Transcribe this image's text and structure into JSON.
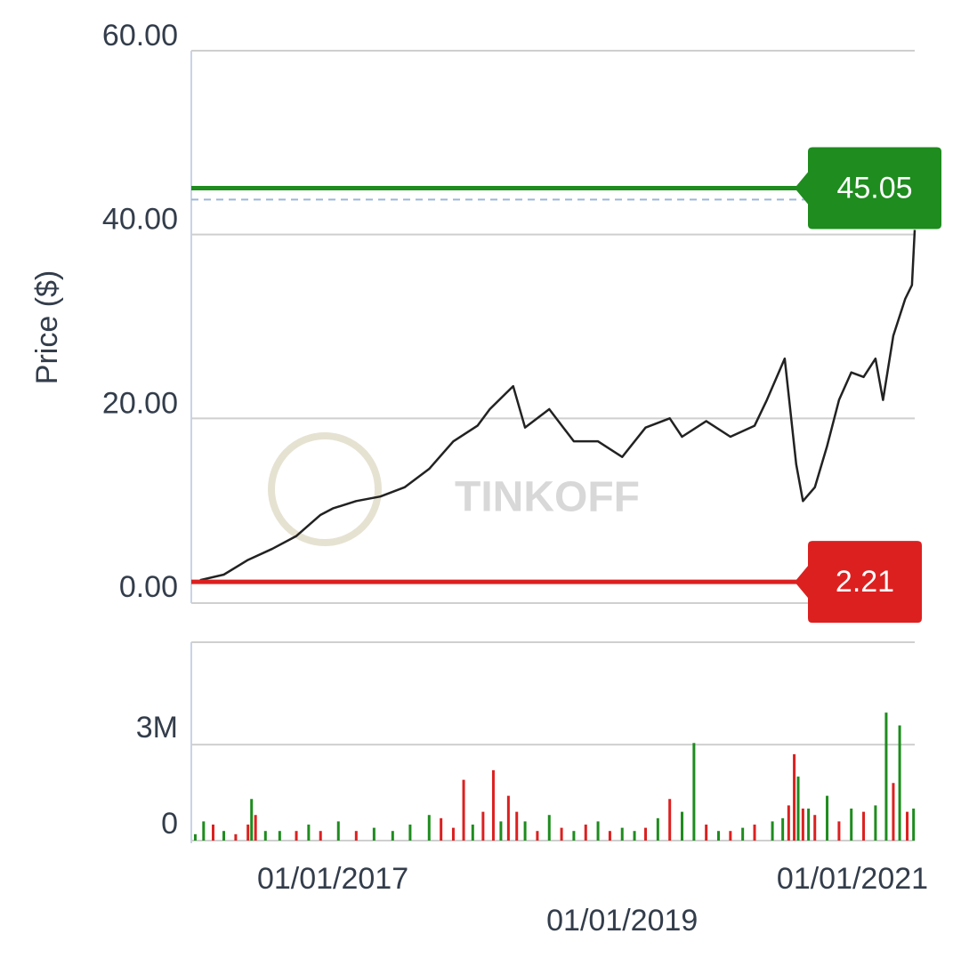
{
  "chart_data": [
    {
      "type": "line",
      "ylabel": "Price ($)",
      "watermark": "TINKOFF",
      "xlim": [
        "01/10/2016",
        "01/08/2021"
      ],
      "xticks": [
        "01/01/2017",
        "01/01/2019",
        "01/01/2021"
      ],
      "ylim": [
        0,
        60
      ],
      "yticks": [
        {
          "value": 0,
          "label": "0.00"
        },
        {
          "value": 20,
          "label": "20.00"
        },
        {
          "value": 40,
          "label": "40.00"
        },
        {
          "value": 60,
          "label": "60.00"
        }
      ],
      "grid": true,
      "x": [
        "02/01/2016",
        "04/01/2016",
        "06/01/2016",
        "08/01/2016",
        "10/01/2016",
        "12/01/2016",
        "01/01/2017",
        "03/01/2017",
        "05/01/2017",
        "07/01/2017",
        "09/01/2017",
        "11/01/2017",
        "01/01/2018",
        "02/01/2018",
        "04/01/2018",
        "05/01/2018",
        "07/01/2018",
        "09/01/2018",
        "11/01/2018",
        "01/01/2019",
        "03/01/2019",
        "05/01/2019",
        "06/01/2019",
        "08/01/2019",
        "10/01/2019",
        "12/01/2019",
        "01/01/2020",
        "02/15/2020",
        "03/15/2020",
        "04/01/2020",
        "05/01/2020",
        "06/01/2020",
        "07/01/2020",
        "08/01/2020",
        "09/01/2020",
        "10/01/2020",
        "10/20/2020",
        "11/15/2020",
        "12/15/2020",
        "01/01/2021",
        "01/08/2021"
      ],
      "series": [
        {
          "color": "#222222",
          "values": [
            2.4,
            3.0,
            4.6,
            5.8,
            7.2,
            9.5,
            10.2,
            11,
            11.5,
            12.5,
            14.5,
            17.5,
            19.2,
            21,
            23.5,
            19,
            21,
            17.5,
            17.5,
            15.8,
            19,
            20,
            18,
            19.7,
            18,
            19.2,
            22,
            26.5,
            15,
            11,
            12.5,
            17,
            22,
            25,
            24.5,
            26.5,
            22,
            29,
            33,
            34.5,
            40.5
          ]
        }
      ],
      "reference_lines": [
        {
          "value": 45.05,
          "color": "#1e8c1e"
        },
        {
          "value": 2.21,
          "color": "#dc2020"
        }
      ],
      "dashed_line": 43.8
    },
    {
      "type": "bar",
      "xlim": [
        "01/10/2016",
        "01/08/2021"
      ],
      "ylim": [
        0,
        6200000
      ],
      "yticks": [
        0,
        {
          "value": 3000000,
          "label": "3M"
        }
      ],
      "grid": true,
      "x": [
        "01/20/2016",
        "02/10/2016",
        "03/05/2016",
        "04/01/2016",
        "05/01/2016",
        "06/01/2016",
        "06/10/2016",
        "06/20/2016",
        "07/15/2016",
        "08/20/2016",
        "10/01/2016",
        "11/01/2016",
        "12/01/2016",
        "01/15/2017",
        "03/01/2017",
        "04/15/2017",
        "06/01/2017",
        "07/15/2017",
        "09/01/2017",
        "10/01/2017",
        "11/01/2017",
        "11/27/2017",
        "12/20/2017",
        "01/15/2018",
        "02/10/2018",
        "03/01/2018",
        "03/20/2018",
        "04/10/2018",
        "05/01/2018",
        "06/01/2018",
        "07/01/2018",
        "08/01/2018",
        "09/01/2018",
        "10/01/2018",
        "11/01/2018",
        "12/01/2018",
        "01/01/2019",
        "02/01/2019",
        "03/01/2019",
        "04/01/2019",
        "05/01/2019",
        "06/01/2019",
        "07/01/2019",
        "08/01/2019",
        "09/01/2019",
        "10/01/2019",
        "11/01/2019",
        "12/01/2019",
        "01/15/2020",
        "02/10/2020",
        "02/25/2020",
        "03/10/2020",
        "03/20/2020",
        "04/01/2020",
        "04/15/2020",
        "05/01/2020",
        "06/01/2020",
        "07/01/2020",
        "08/01/2020",
        "09/01/2020",
        "10/01/2020",
        "10/28/2020",
        "11/15/2020",
        "12/01/2020",
        "12/20/2020",
        "01/05/2021"
      ],
      "values": [
        200000,
        600000,
        500000,
        300000,
        200000,
        500000,
        1300000,
        800000,
        300000,
        300000,
        300000,
        500000,
        300000,
        600000,
        300000,
        400000,
        300000,
        500000,
        800000,
        700000,
        400000,
        1900000,
        500000,
        900000,
        2200000,
        600000,
        1400000,
        900000,
        600000,
        300000,
        800000,
        400000,
        300000,
        500000,
        600000,
        300000,
        400000,
        300000,
        400000,
        700000,
        1300000,
        900000,
        3050000,
        500000,
        300000,
        300000,
        400000,
        500000,
        600000,
        700000,
        1100000,
        2700000,
        2000000,
        1000000,
        1000000,
        800000,
        1400000,
        600000,
        1000000,
        900000,
        1100000,
        4000000,
        1800000,
        3600000,
        900000,
        1000000
      ],
      "colors": [
        "#1e8c1e",
        "#1e8c1e",
        "#dc2020",
        "#1e8c1e",
        "#dc2020",
        "#dc2020",
        "#1e8c1e",
        "#dc2020",
        "#1e8c1e",
        "#1e8c1e",
        "#dc2020",
        "#1e8c1e",
        "#dc2020",
        "#1e8c1e",
        "#dc2020",
        "#1e8c1e",
        "#1e8c1e",
        "#1e8c1e",
        "#1e8c1e",
        "#dc2020",
        "#dc2020",
        "#dc2020",
        "#1e8c1e",
        "#dc2020",
        "#dc2020",
        "#1e8c1e",
        "#dc2020",
        "#dc2020",
        "#1e8c1e",
        "#dc2020",
        "#1e8c1e",
        "#dc2020",
        "#1e8c1e",
        "#dc2020",
        "#1e8c1e",
        "#dc2020",
        "#1e8c1e",
        "#1e8c1e",
        "#dc2020",
        "#1e8c1e",
        "#dc2020",
        "#1e8c1e",
        "#1e8c1e",
        "#dc2020",
        "#1e8c1e",
        "#dc2020",
        "#1e8c1e",
        "#dc2020",
        "#1e8c1e",
        "#1e8c1e",
        "#dc2020",
        "#dc2020",
        "#1e8c1e",
        "#dc2020",
        "#1e8c1e",
        "#dc2020",
        "#1e8c1e",
        "#dc2020",
        "#1e8c1e",
        "#dc2020",
        "#1e8c1e",
        "#1e8c1e",
        "#dc2020",
        "#1e8c1e",
        "#dc2020",
        "#1e8c1e"
      ]
    }
  ]
}
